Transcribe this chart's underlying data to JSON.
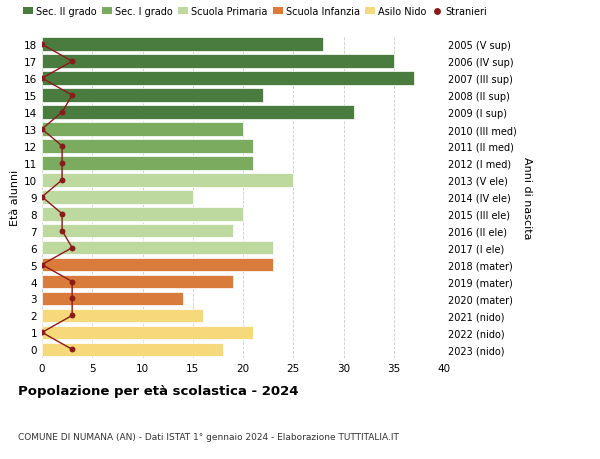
{
  "ages": [
    18,
    17,
    16,
    15,
    14,
    13,
    12,
    11,
    10,
    9,
    8,
    7,
    6,
    5,
    4,
    3,
    2,
    1,
    0
  ],
  "labels_right": [
    "2005 (V sup)",
    "2006 (IV sup)",
    "2007 (III sup)",
    "2008 (II sup)",
    "2009 (I sup)",
    "2010 (III med)",
    "2011 (II med)",
    "2012 (I med)",
    "2013 (V ele)",
    "2014 (IV ele)",
    "2015 (III ele)",
    "2016 (II ele)",
    "2017 (I ele)",
    "2018 (mater)",
    "2019 (mater)",
    "2020 (mater)",
    "2021 (nido)",
    "2022 (nido)",
    "2023 (nido)"
  ],
  "bar_values": [
    28,
    35,
    37,
    22,
    31,
    20,
    21,
    21,
    25,
    15,
    20,
    19,
    23,
    23,
    19,
    14,
    16,
    21,
    18
  ],
  "bar_colors": [
    "#4a7c3f",
    "#4a7c3f",
    "#4a7c3f",
    "#4a7c3f",
    "#4a7c3f",
    "#7aab5e",
    "#7aab5e",
    "#7aab5e",
    "#bdd9a0",
    "#bdd9a0",
    "#bdd9a0",
    "#bdd9a0",
    "#bdd9a0",
    "#d97b3a",
    "#d97b3a",
    "#d97b3a",
    "#f5d97a",
    "#f5d97a",
    "#f5d97a"
  ],
  "stranieri_values": [
    0,
    3,
    0,
    3,
    2,
    0,
    2,
    2,
    2,
    0,
    2,
    2,
    3,
    0,
    3,
    3,
    3,
    0,
    3
  ],
  "legend_labels": [
    "Sec. II grado",
    "Sec. I grado",
    "Scuola Primaria",
    "Scuola Infanzia",
    "Asilo Nido",
    "Stranieri"
  ],
  "legend_colors": [
    "#4a7c3f",
    "#7aab5e",
    "#bdd9a0",
    "#d97b3a",
    "#f5d97a",
    "#8b1a1a"
  ],
  "title": "Popolazione per età scolastica - 2024",
  "subtitle": "COMUNE DI NUMANA (AN) - Dati ISTAT 1° gennaio 2024 - Elaborazione TUTTITALIA.IT",
  "ylabel": "Età alunni",
  "ylabel2": "Anni di nascita",
  "xlim": [
    0,
    40
  ],
  "background_color": "#ffffff",
  "grid_color": "#cccccc",
  "stranieri_color": "#8b1a1a"
}
